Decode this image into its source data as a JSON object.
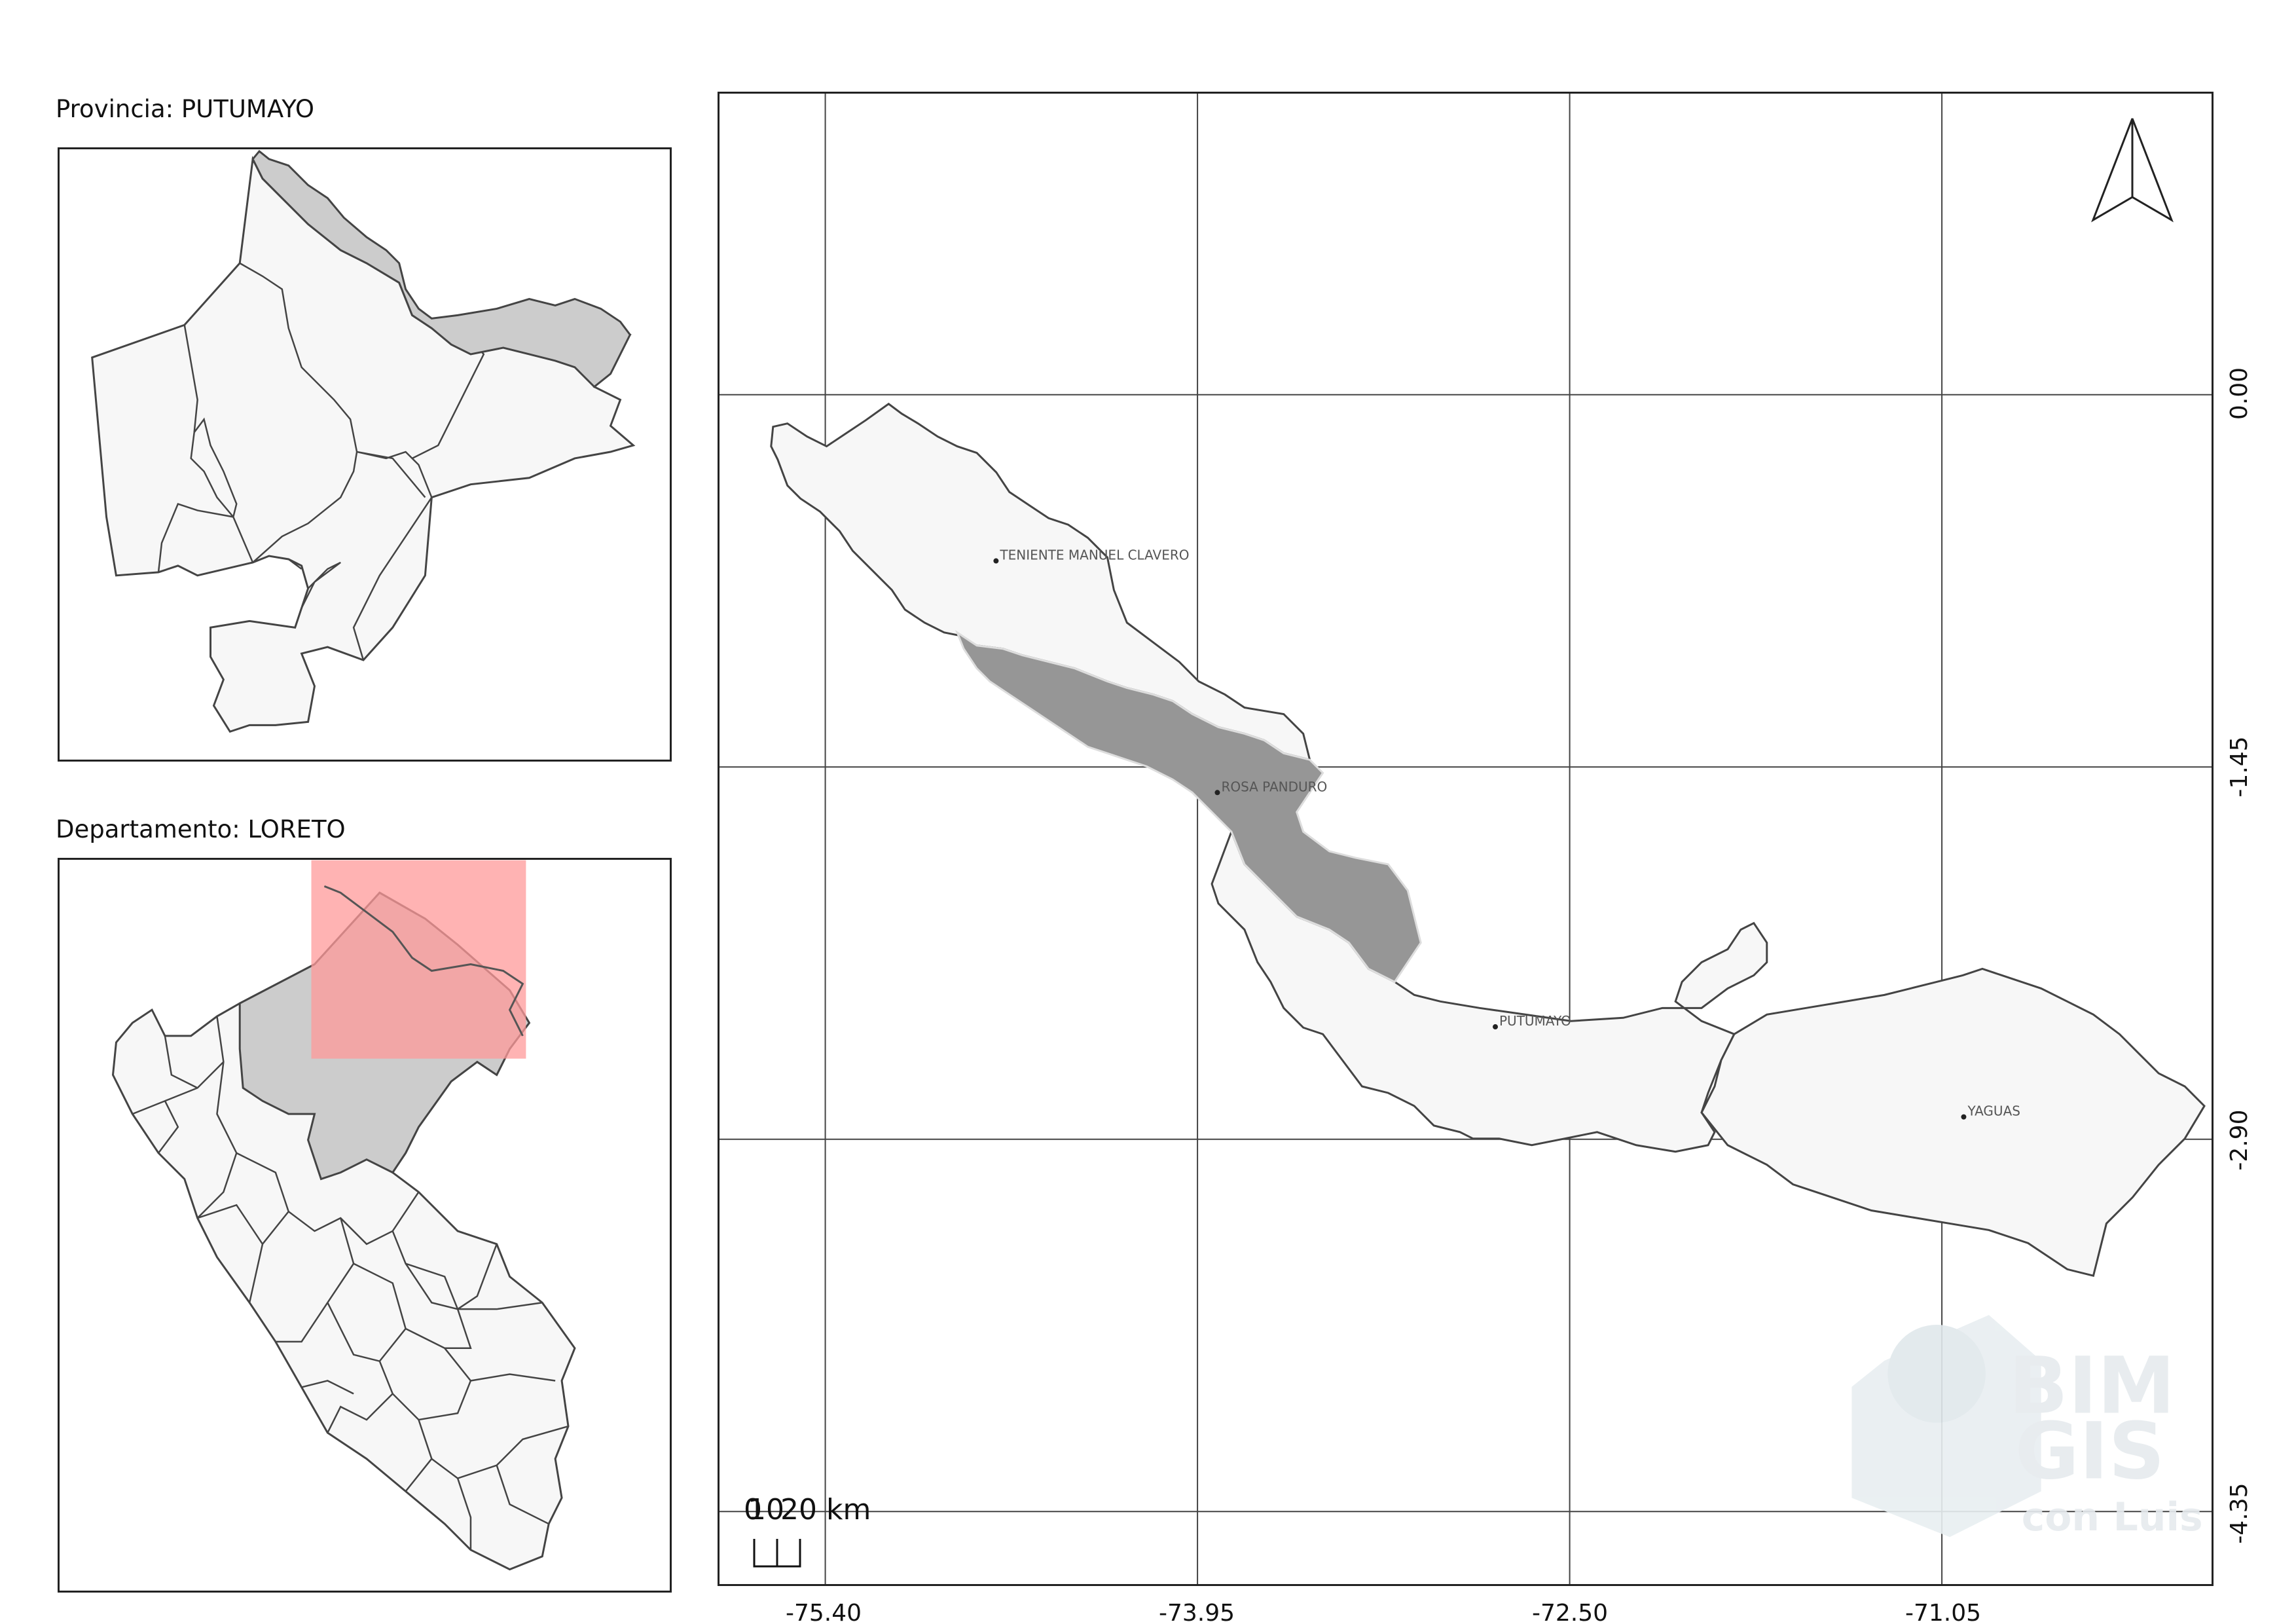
{
  "inset_province": {
    "title": "Provincia: PUTUMAYO"
  },
  "inset_department": {
    "title": "Departamento: LORETO"
  },
  "main_map": {
    "x_ticks": [
      "-75.40",
      "-73.95",
      "-72.50",
      "-71.05"
    ],
    "y_ticks": [
      "0.00",
      "-1.45",
      "-2.90",
      "-4.35"
    ],
    "places": [
      {
        "name": "TENIENTE MANUEL CLAVERO",
        "lon": -74.73,
        "lat": -0.65
      },
      {
        "name": "ROSA PANDURO",
        "lon": -73.87,
        "lat": -1.55
      },
      {
        "name": "PUTUMAYO",
        "lon": -72.79,
        "lat": -2.46
      },
      {
        "name": "YAGUAS",
        "lon": -70.97,
        "lat": -2.81
      }
    ],
    "scale_bar": {
      "label": "0 10 20 km",
      "label_text": "0",
      "label_text2": "10",
      "label_text3": "20 km"
    },
    "north_arrow": "north-arrow-icon",
    "watermark": {
      "line1": "BIM",
      "line2": "GIS",
      "line3": "con Luis"
    },
    "colors": {
      "highlight": "#969696",
      "district_fill": "#f7f7f7",
      "outline": "#444444",
      "locator_box": "#ff9999"
    }
  }
}
